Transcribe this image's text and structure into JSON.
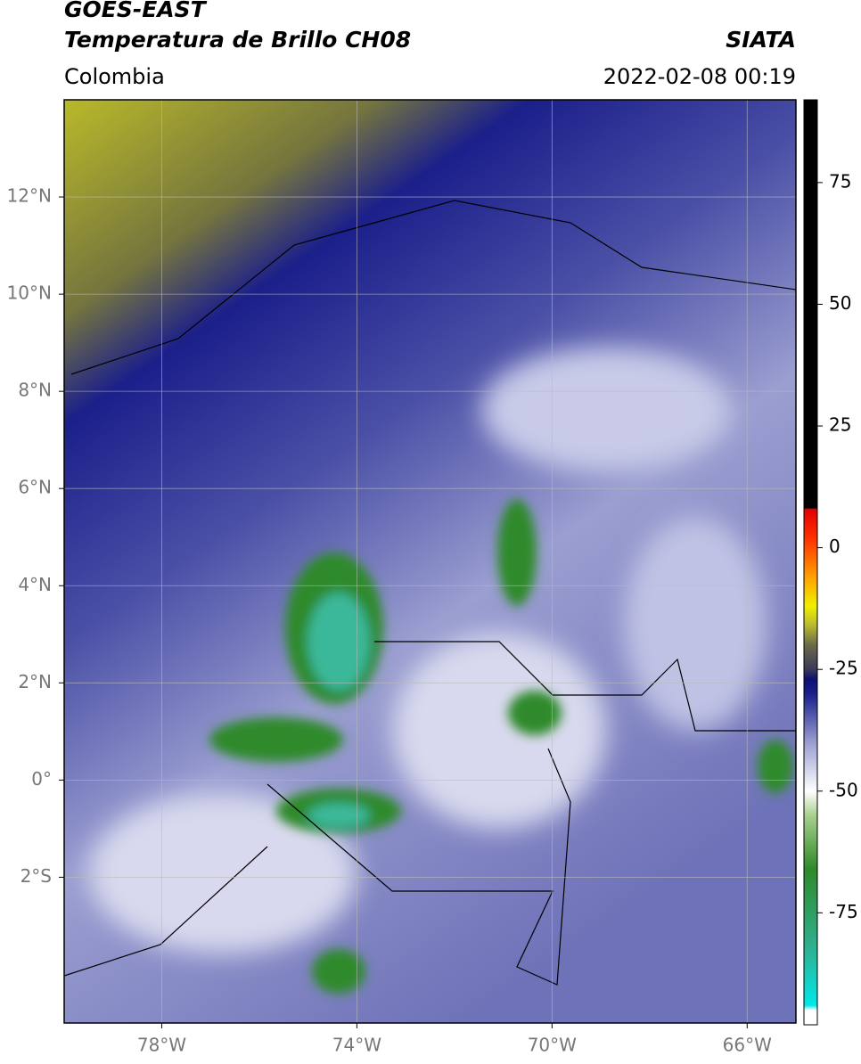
{
  "map": {
    "title": "GOES-EAST",
    "subtitle": "Temperatura de Brillo CH08",
    "source": "SIATA",
    "region": "Colombia",
    "datetime": "2022-02-08 00:19",
    "xlim": [
      -80,
      -65
    ],
    "ylim": [
      -5,
      14
    ],
    "xticks": [
      {
        "value": -78,
        "label": "78°W"
      },
      {
        "value": -74,
        "label": "74°W"
      },
      {
        "value": -70,
        "label": "70°W"
      },
      {
        "value": -66,
        "label": "66°W"
      }
    ],
    "yticks": [
      {
        "value": 12,
        "label": "12°N"
      },
      {
        "value": 10,
        "label": "10°N"
      },
      {
        "value": 8,
        "label": "8°N"
      },
      {
        "value": 6,
        "label": "6°N"
      },
      {
        "value": 4,
        "label": "4°N"
      },
      {
        "value": 2,
        "label": "2°N"
      },
      {
        "value": 0,
        "label": "0°"
      },
      {
        "value": -2,
        "label": "2°S"
      }
    ],
    "grid": true,
    "colorbar": {
      "lim": [
        -98,
        92
      ],
      "ticks": [
        75,
        50,
        25,
        0,
        -25,
        -50,
        -75
      ],
      "stops": [
        {
          "value": -98,
          "color": "#ffffff"
        },
        {
          "value": -95,
          "color": "#ffffff"
        },
        {
          "value": -94,
          "color": "#00e8e8"
        },
        {
          "value": -82,
          "color": "#2fb08f"
        },
        {
          "value": -66,
          "color": "#2e8a2a"
        },
        {
          "value": -55,
          "color": "#a8d08e"
        },
        {
          "value": -50,
          "color": "#ffffff"
        },
        {
          "value": -40,
          "color": "#9a9ed0"
        },
        {
          "value": -30,
          "color": "#1a1f8c"
        },
        {
          "value": -27,
          "color": "#0d1070"
        },
        {
          "value": -25,
          "color": "#3a3a5a"
        },
        {
          "value": -20,
          "color": "#6a6a4a"
        },
        {
          "value": -16,
          "color": "#b8b830"
        },
        {
          "value": -12,
          "color": "#f0f000"
        },
        {
          "value": -6,
          "color": "#ffa000"
        },
        {
          "value": 2,
          "color": "#ff3000"
        },
        {
          "value": 8,
          "color": "#e00000"
        },
        {
          "value": 8.1,
          "color": "#000000"
        },
        {
          "value": 92,
          "color": "#000000"
        }
      ]
    }
  }
}
